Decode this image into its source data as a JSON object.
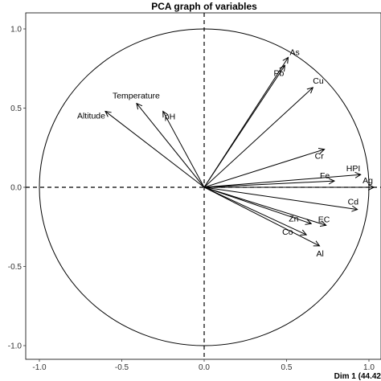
{
  "chart_data": {
    "type": "scatter",
    "subtype": "pca-correlation-circle",
    "title": "PCA graph of variables",
    "xlabel": "Dim 1 (44.42",
    "ylabel": "",
    "xlim": [
      -1.08,
      1.05
    ],
    "ylim": [
      -1.1,
      1.08
    ],
    "xticks": [
      -1.0,
      -0.5,
      0.0,
      0.5,
      1.0
    ],
    "xtick_labels": [
      "-1.0",
      "-0.5",
      "0.0",
      "0.5",
      "1.0"
    ],
    "yticks": [
      -1.0,
      -0.5,
      0.0,
      0.5,
      1.0
    ],
    "ytick_labels": [
      "-1.0",
      "-0.5",
      "0.0",
      "0.5",
      "1.0"
    ],
    "grid": false,
    "circle_radius": 1.0,
    "reference_lines": "dashed lines at x=0 and y=0",
    "series": [
      {
        "points": [
          {
            "name": "As",
            "x": 0.51,
            "y": 0.82
          },
          {
            "name": "Pb",
            "x": 0.49,
            "y": 0.77
          },
          {
            "name": "Cu",
            "x": 0.66,
            "y": 0.63
          },
          {
            "name": "Temperature",
            "x": -0.41,
            "y": 0.53
          },
          {
            "name": "pH",
            "x": -0.25,
            "y": 0.48
          },
          {
            "name": "Altitude",
            "x": -0.6,
            "y": 0.48
          },
          {
            "name": "Cr",
            "x": 0.73,
            "y": 0.24
          },
          {
            "name": "HPI",
            "x": 0.95,
            "y": 0.08
          },
          {
            "name": "Fe",
            "x": 0.79,
            "y": 0.04
          },
          {
            "name": "Ag",
            "x": 1.03,
            "y": 0.0
          },
          {
            "name": "Cd",
            "x": 0.93,
            "y": -0.14
          },
          {
            "name": "EC",
            "x": 0.74,
            "y": -0.24
          },
          {
            "name": "Zn",
            "x": 0.65,
            "y": -0.23
          },
          {
            "name": "Co",
            "x": 0.62,
            "y": -0.3
          },
          {
            "name": "Al",
            "x": 0.7,
            "y": -0.37
          }
        ]
      }
    ]
  }
}
